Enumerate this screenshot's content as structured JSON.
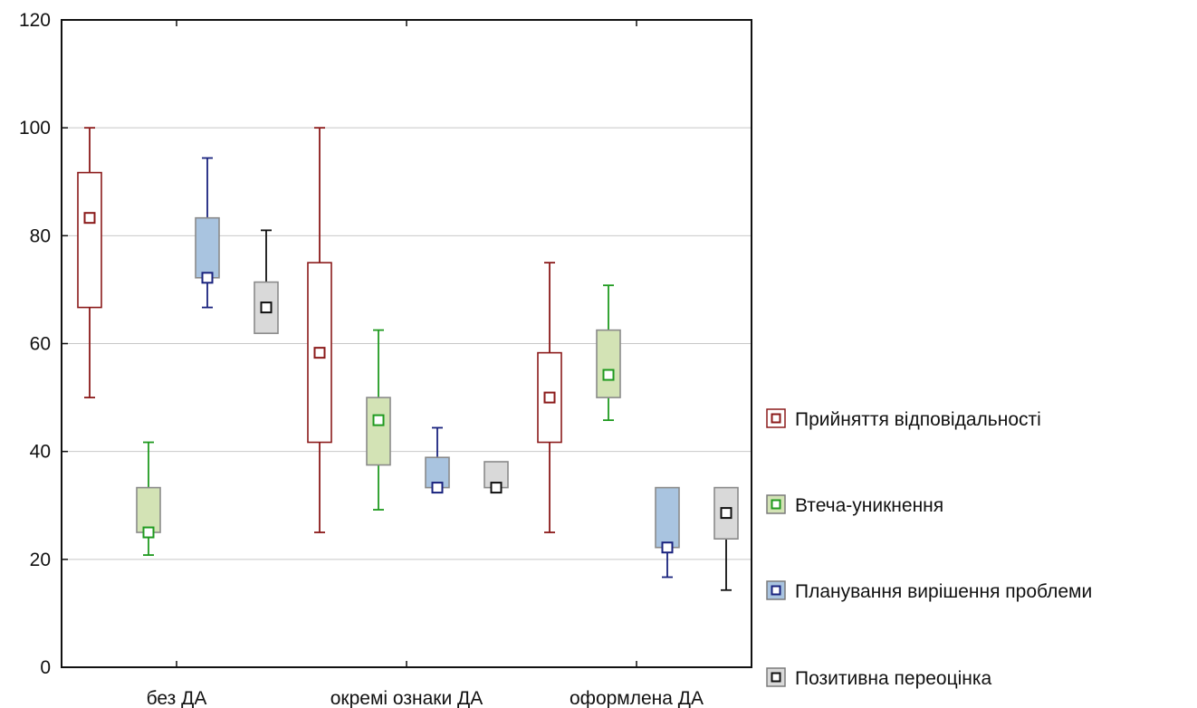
{
  "chart_data": {
    "type": "box",
    "title": "",
    "xlabel": "",
    "ylabel": "",
    "ylim": [
      0,
      120
    ],
    "yticks": [
      0,
      20,
      40,
      60,
      80,
      100,
      120
    ],
    "grid": "horizontal",
    "legend_position": "right",
    "categories": [
      "без ДА",
      "окремі ознаки ДА",
      "оформлена ДА"
    ],
    "series": [
      {
        "name": "Прийняття відповідальності",
        "color": "#8b1a1a",
        "fill": "#ffffff",
        "boxes": [
          {
            "category": "без ДА",
            "min": 50,
            "q1": 66.7,
            "median": 83.3,
            "q3": 91.7,
            "max": 100
          },
          {
            "category": "окремі ознаки ДА",
            "min": 25,
            "q1": 41.7,
            "median": 58.3,
            "q3": 75,
            "max": 100
          },
          {
            "category": "оформлена ДА",
            "min": 25,
            "q1": 41.7,
            "median": 50,
            "q3": 58.3,
            "max": 75
          }
        ]
      },
      {
        "name": "Втеча-уникнення",
        "color": "#1f9a1f",
        "fill": "#d3e3b5",
        "boxes": [
          {
            "category": "без ДА",
            "min": 20.8,
            "q1": 25,
            "median": 25,
            "q3": 33.3,
            "max": 41.7
          },
          {
            "category": "окремі ознаки ДА",
            "min": 29.2,
            "q1": 37.5,
            "median": 45.8,
            "q3": 50,
            "max": 62.5
          },
          {
            "category": "оформлена ДА",
            "min": 45.8,
            "q1": 50,
            "median": 54.2,
            "q3": 62.5,
            "max": 70.8
          }
        ]
      },
      {
        "name": "Планування вирішення проблеми",
        "color": "#1a237e",
        "fill": "#a9c4e0",
        "boxes": [
          {
            "category": "без ДА",
            "min": 66.7,
            "q1": 72.2,
            "median": 72.2,
            "q3": 83.3,
            "max": 94.4
          },
          {
            "category": "окремі ознаки ДА",
            "min": 33.3,
            "q1": 33.3,
            "median": 33.3,
            "q3": 38.9,
            "max": 44.4
          },
          {
            "category": "оформлена ДА",
            "min": 16.7,
            "q1": 22.2,
            "median": 22.2,
            "q3": 33.3,
            "max": 33.3
          }
        ]
      },
      {
        "name": "Позитивна переоцінка",
        "color": "#111111",
        "fill": "#d9d9d9",
        "boxes": [
          {
            "category": "без ДА",
            "min": 61.9,
            "q1": 61.9,
            "median": 66.7,
            "q3": 71.4,
            "max": 81
          },
          {
            "category": "окремі ознаки ДА",
            "min": 33.3,
            "q1": 33.3,
            "median": 33.3,
            "q3": 38.1,
            "max": 38.1
          },
          {
            "category": "оформлена ДА",
            "min": 14.3,
            "q1": 23.8,
            "median": 28.6,
            "q3": 33.3,
            "max": 33.3
          }
        ]
      }
    ]
  }
}
